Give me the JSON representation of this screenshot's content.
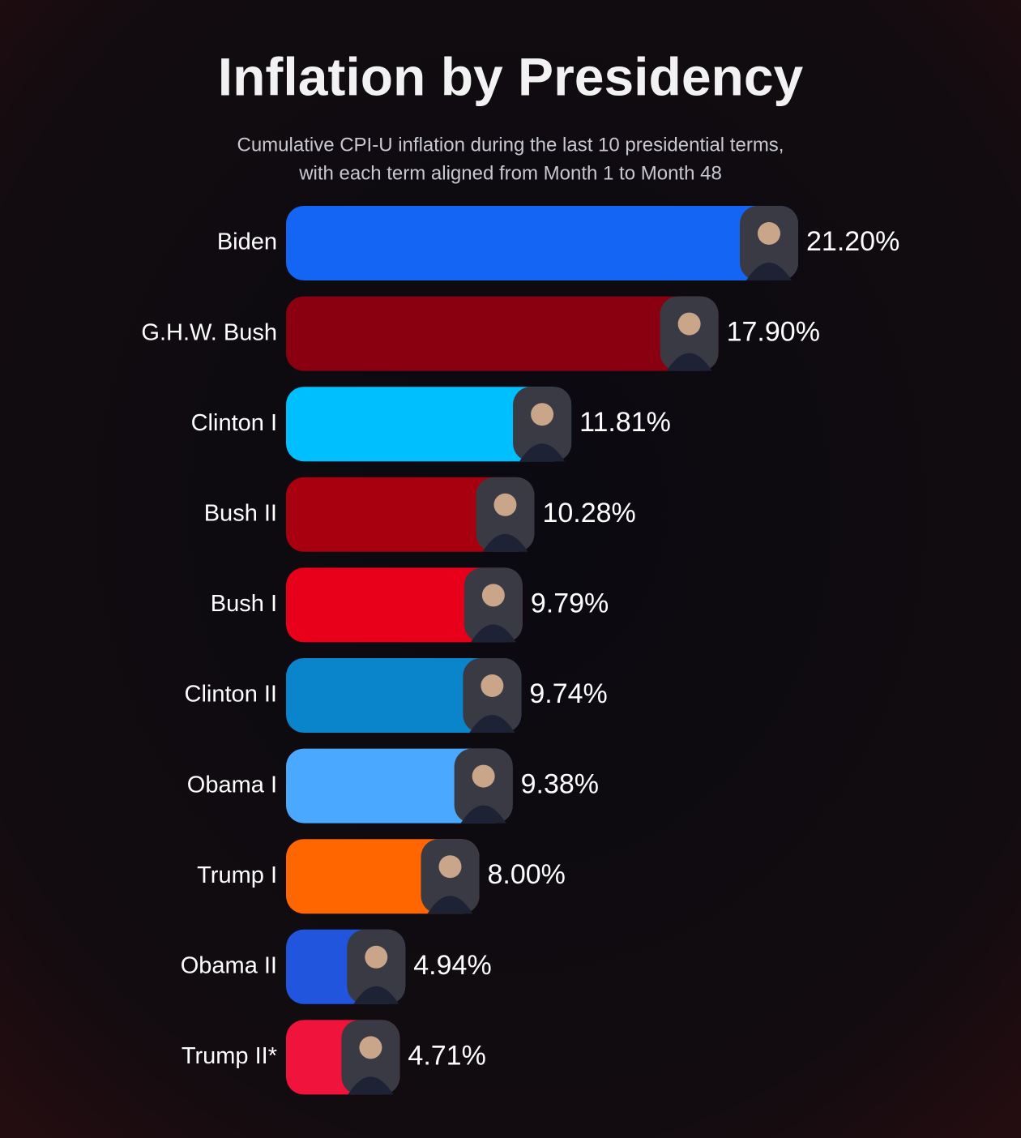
{
  "chart_data": {
    "type": "bar",
    "title": "Inflation by Presidency",
    "subtitle": [
      "Cumulative CPI-U inflation during the last 10 presidential terms,",
      "with each term aligned from Month 1 to Month 48"
    ],
    "categories": [
      "Biden",
      "G.H.W. Bush",
      "Clinton I",
      "Bush II",
      "Bush I",
      "Clinton II",
      "Obama I",
      "Trump I",
      "Obama II",
      "Trump II*"
    ],
    "values": [
      21.2,
      17.9,
      11.81,
      10.28,
      9.79,
      9.74,
      9.38,
      8.0,
      4.94,
      4.71
    ],
    "value_labels": [
      "21.20%",
      "17.90%",
      "11.81%",
      "10.28%",
      "9.79%",
      "9.74%",
      "9.38%",
      "8.00%",
      "4.94%",
      "4.71%"
    ],
    "colors": [
      "#1565f5",
      "#8b0010",
      "#00bfff",
      "#a8000f",
      "#e8001a",
      "#0a85cc",
      "#4aa8ff",
      "#ff6600",
      "#2255dd",
      "#f0143c"
    ]
  }
}
